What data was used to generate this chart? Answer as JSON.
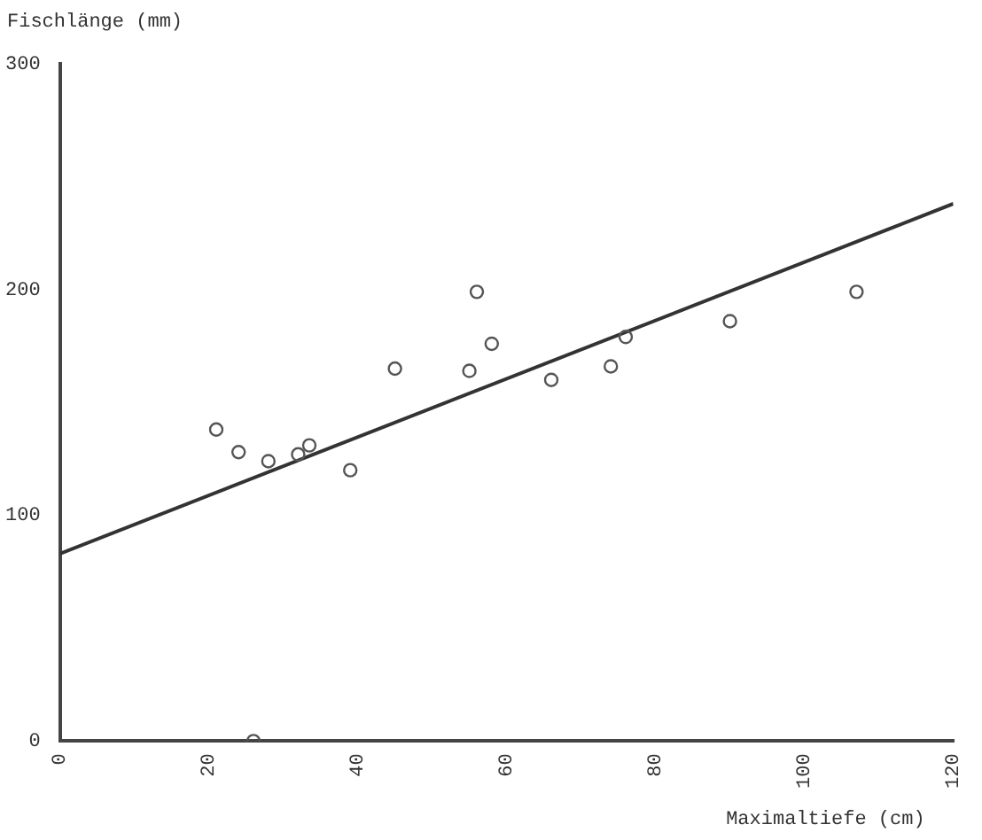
{
  "chart_data": {
    "type": "scatter",
    "xlabel": "Maximaltiefe (cm)",
    "ylabel": "Fischlänge (mm)",
    "xlim": [
      0,
      120
    ],
    "ylim": [
      0,
      300
    ],
    "xticks": [
      0,
      20,
      40,
      60,
      80,
      100,
      120
    ],
    "yticks": [
      0,
      100,
      200,
      300
    ],
    "grid": false,
    "legend": false,
    "series": [
      {
        "marker": "circle",
        "color": "#555555",
        "x": [
          21,
          24,
          28,
          32,
          33.5,
          39,
          45,
          55,
          56,
          58,
          66,
          74,
          76,
          90,
          107,
          26
        ],
        "values": [
          138,
          128,
          124,
          127,
          131,
          120,
          165,
          164,
          199,
          176,
          160,
          166,
          179,
          186,
          199,
          0
        ]
      },
      {
        "type": "line",
        "marker": "none",
        "color": "#333333",
        "x": [
          0,
          120
        ],
        "values": [
          83,
          238
        ]
      }
    ]
  }
}
